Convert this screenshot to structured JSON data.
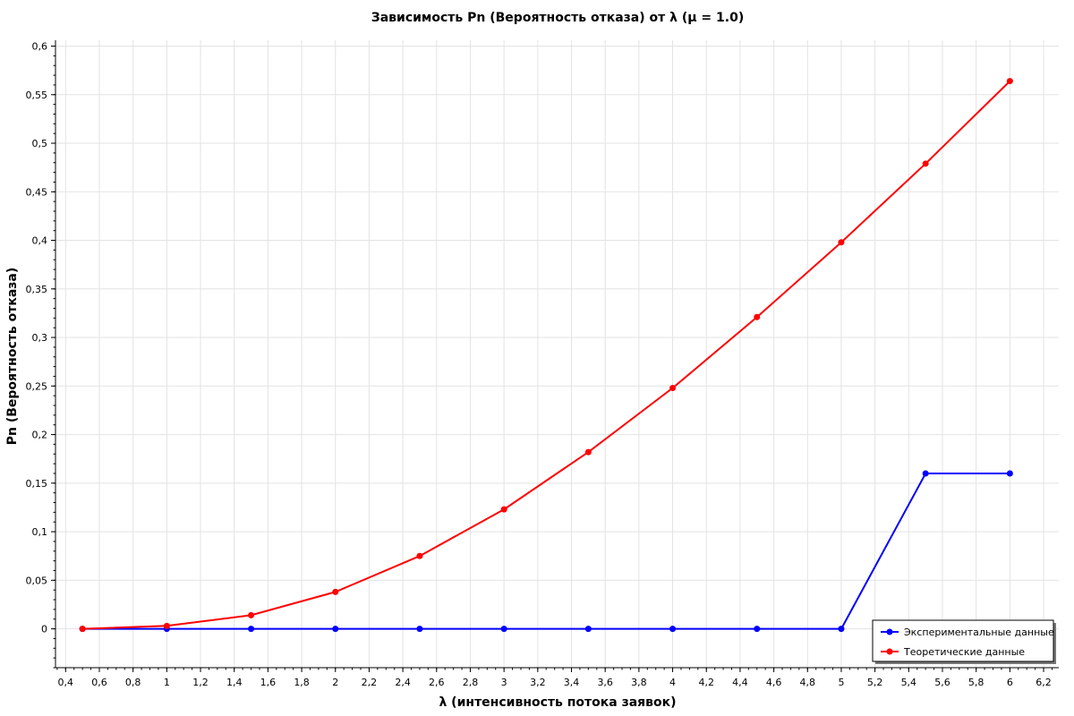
{
  "chart_data": {
    "type": "line",
    "title": "Зависимость Pn (Вероятность отказа) от λ (μ = 1.0)",
    "xlabel": "λ (интенсивность потока заявок)",
    "ylabel": "Pn (Вероятность отказа)",
    "xlim": [
      0.34,
      6.29
    ],
    "ylim": [
      -0.04,
      0.606
    ],
    "x_ticks": [
      "0,4",
      "0,6",
      "0,8",
      "1",
      "1,2",
      "1,4",
      "1,6",
      "1,8",
      "2",
      "2,2",
      "2,4",
      "2,6",
      "2,8",
      "3",
      "3,2",
      "3,4",
      "3,6",
      "3,8",
      "4",
      "4,2",
      "4,4",
      "4,6",
      "4,8",
      "5",
      "5,2",
      "5,4",
      "5,6",
      "5,8",
      "6",
      "6,2"
    ],
    "y_ticks": [
      "0",
      "0,05",
      "0,1",
      "0,15",
      "0,2",
      "0,25",
      "0,3",
      "0,35",
      "0,4",
      "0,45",
      "0,5",
      "0,55",
      "0,6"
    ],
    "grid": true,
    "legend_position": "bottom-right",
    "series": [
      {
        "name": "Экспериментальные данные",
        "color": "#0000ff",
        "x": [
          0.5,
          1,
          1.5,
          2,
          2.5,
          3,
          3.5,
          4,
          4.5,
          5,
          5.5,
          6
        ],
        "y": [
          0,
          0,
          0,
          0,
          0,
          0,
          0,
          0,
          0,
          0,
          0.16,
          0.16
        ]
      },
      {
        "name": "Теоретические данные",
        "color": "#ff0000",
        "x": [
          0.5,
          1,
          1.5,
          2,
          2.5,
          3,
          3.5,
          4,
          4.5,
          5,
          5.5,
          6
        ],
        "y": [
          0,
          0.003,
          0.014,
          0.038,
          0.075,
          0.123,
          0.182,
          0.248,
          0.321,
          0.398,
          0.479,
          0.564
        ]
      }
    ]
  }
}
